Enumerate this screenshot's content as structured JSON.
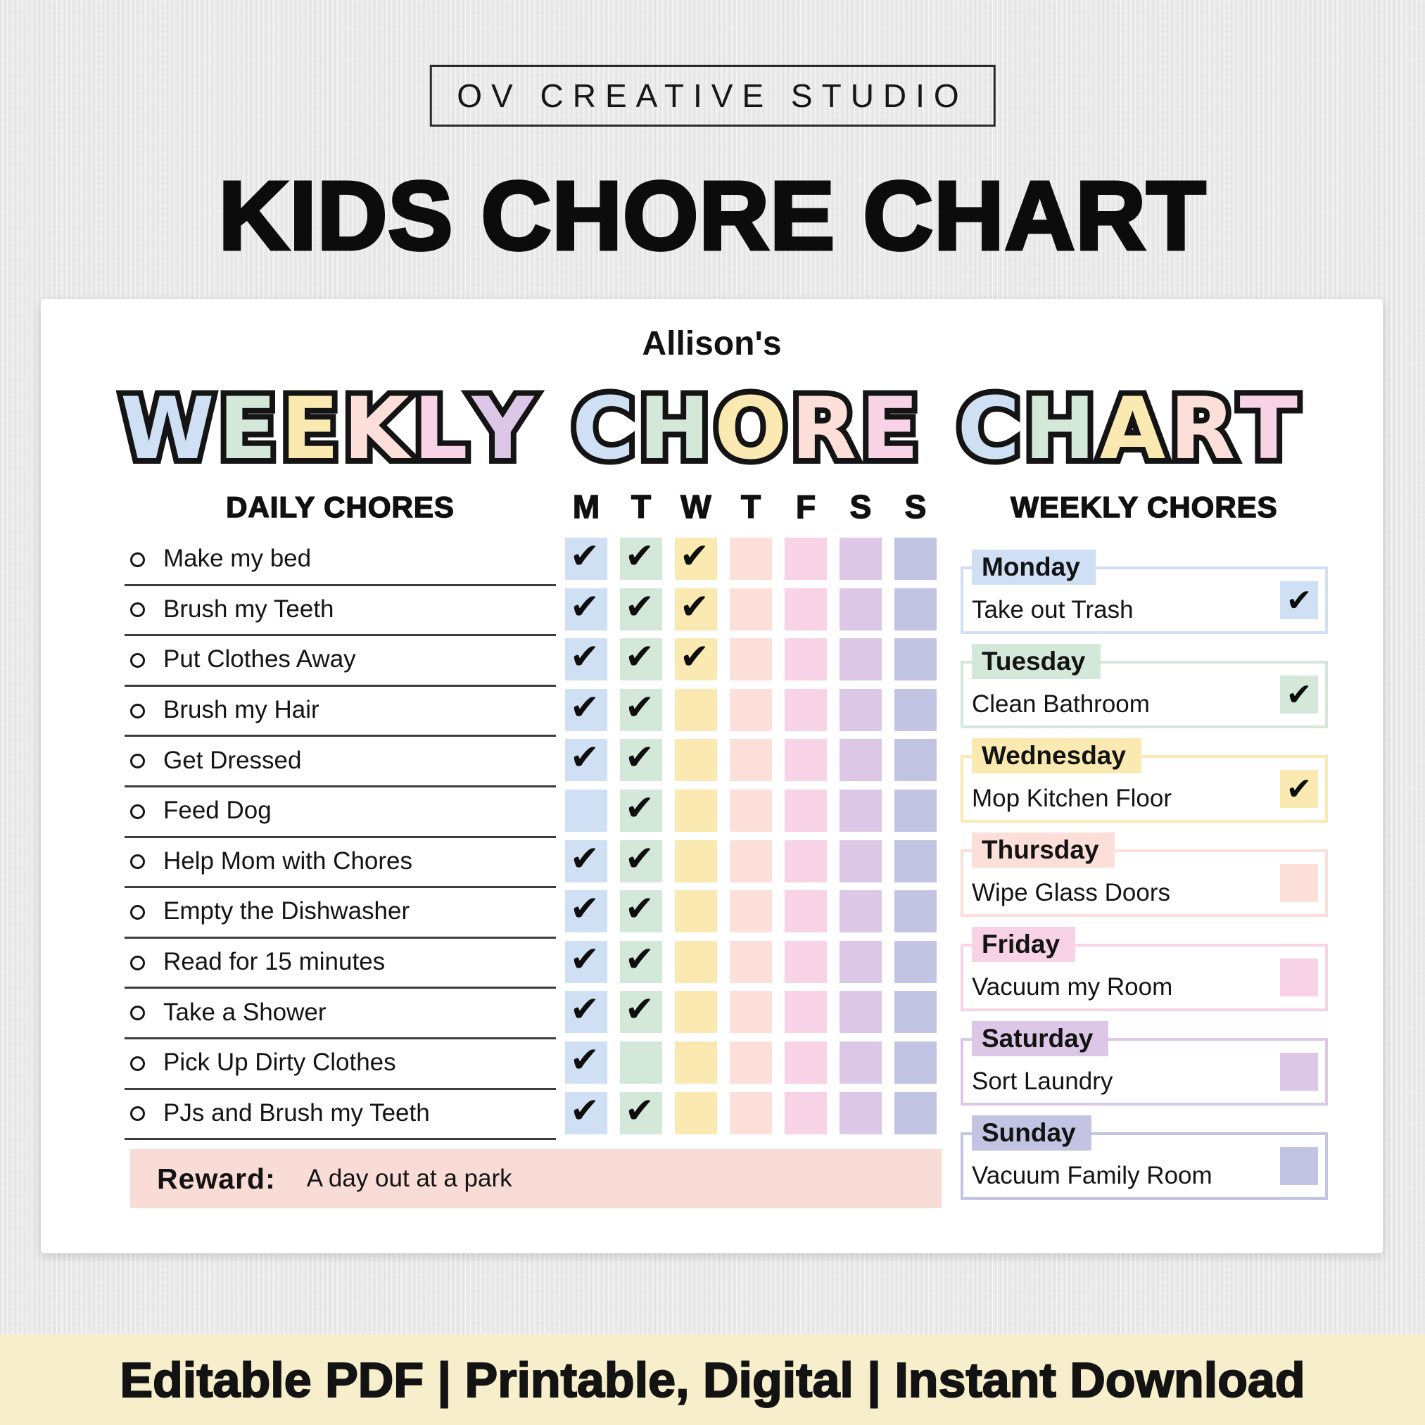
{
  "studio_badge": "OV CREATIVE STUDIO",
  "listing_title": "KIDS CHORE CHART",
  "card": {
    "owner": "Allison's",
    "bubble_title": [
      {
        "word": "WEEKLY",
        "colors": [
          "blue",
          "green",
          "yellow",
          "peach",
          "pink",
          "lavender"
        ]
      },
      {
        "word": "CHORE",
        "colors": [
          "blue",
          "green",
          "yellow",
          "peach",
          "pink"
        ]
      },
      {
        "word": "CHART",
        "colors": [
          "blue",
          "green",
          "yellow",
          "peach",
          "pink"
        ]
      }
    ],
    "daily": {
      "header": "DAILY CHORES",
      "days": [
        "M",
        "T",
        "W",
        "T",
        "F",
        "S",
        "S"
      ],
      "day_colors": [
        "blue",
        "green",
        "yellow",
        "peach",
        "pink",
        "lavender",
        "periwinkle"
      ],
      "check_icon": "✔",
      "chores": [
        {
          "label": "Make my bed",
          "checks": [
            1,
            1,
            1,
            0,
            0,
            0,
            0
          ]
        },
        {
          "label": "Brush my Teeth",
          "checks": [
            1,
            1,
            1,
            0,
            0,
            0,
            0
          ]
        },
        {
          "label": "Put Clothes Away",
          "checks": [
            1,
            1,
            1,
            0,
            0,
            0,
            0
          ]
        },
        {
          "label": "Brush my Hair",
          "checks": [
            1,
            1,
            0,
            0,
            0,
            0,
            0
          ]
        },
        {
          "label": "Get Dressed",
          "checks": [
            1,
            1,
            0,
            0,
            0,
            0,
            0
          ]
        },
        {
          "label": "Feed Dog",
          "checks": [
            0,
            1,
            0,
            0,
            0,
            0,
            0
          ]
        },
        {
          "label": "Help Mom with Chores",
          "checks": [
            1,
            1,
            0,
            0,
            0,
            0,
            0
          ]
        },
        {
          "label": "Empty the Dishwasher",
          "checks": [
            1,
            1,
            0,
            0,
            0,
            0,
            0
          ]
        },
        {
          "label": "Read for 15 minutes",
          "checks": [
            1,
            1,
            0,
            0,
            0,
            0,
            0
          ]
        },
        {
          "label": "Take a Shower",
          "checks": [
            1,
            1,
            0,
            0,
            0,
            0,
            0
          ]
        },
        {
          "label": "Pick Up Dirty Clothes",
          "checks": [
            1,
            0,
            0,
            0,
            0,
            0,
            0
          ]
        },
        {
          "label": "PJs and Brush my Teeth",
          "checks": [
            1,
            1,
            0,
            0,
            0,
            0,
            0
          ]
        }
      ]
    },
    "weekly": {
      "header": "WEEKLY CHORES",
      "items": [
        {
          "day": "Monday",
          "task": "Take out Trash",
          "checked": true,
          "color": "blue"
        },
        {
          "day": "Tuesday",
          "task": "Clean Bathroom",
          "checked": true,
          "color": "green"
        },
        {
          "day": "Wednesday",
          "task": "Mop Kitchen Floor",
          "checked": true,
          "color": "yellow"
        },
        {
          "day": "Thursday",
          "task": "Wipe Glass Doors",
          "checked": false,
          "color": "peach"
        },
        {
          "day": "Friday",
          "task": "Vacuum my Room",
          "checked": false,
          "color": "pink"
        },
        {
          "day": "Saturday",
          "task": "Sort Laundry",
          "checked": false,
          "color": "lavender"
        },
        {
          "day": "Sunday",
          "task": "Vacuum Family Room",
          "checked": false,
          "color": "periwinkle"
        }
      ]
    },
    "reward": {
      "label": "Reward:",
      "value": "A day out at a park"
    }
  },
  "footer_banner": "Editable PDF | Printable, Digital | Instant Download",
  "colors": {
    "blue": "#cfe0f4",
    "green": "#d4e8da",
    "yellow": "#fae9b1",
    "peach": "#fbdfd8",
    "pink": "#f8d3e5",
    "lavender": "#dcc8e6",
    "periwinkle": "#c3c3e4",
    "reward_bar": "#fadcd7",
    "banner": "#f7eecb"
  }
}
